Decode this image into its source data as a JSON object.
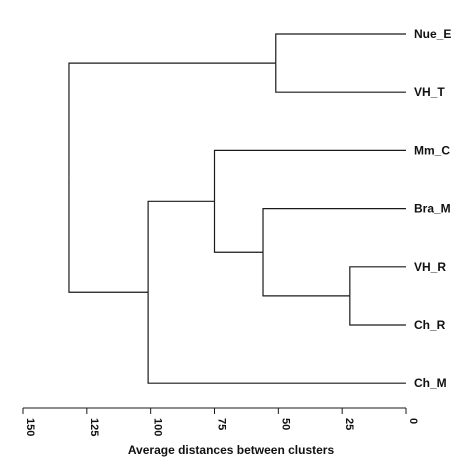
{
  "chart_data": {
    "type": "dendrogram",
    "orientation": "horizontal",
    "x_reversed": true,
    "xlabel": "Average distances between clusters",
    "xlim": [
      0,
      150
    ],
    "xticks": [
      150,
      125,
      100,
      75,
      50,
      25,
      0
    ],
    "leaves": [
      "Nue_E",
      "VH_T",
      "Mm_C",
      "Bra_M",
      "VH_R",
      "Ch_R",
      "Ch_M"
    ],
    "merges": [
      {
        "id": "m1",
        "children": [
          "VH_R",
          "Ch_R"
        ],
        "height": 22
      },
      {
        "id": "m2",
        "children": [
          "Bra_M",
          "m1"
        ],
        "height": 56
      },
      {
        "id": "m3",
        "children": [
          "Mm_C",
          "m2"
        ],
        "height": 75
      },
      {
        "id": "m4",
        "children": [
          "m3",
          "Ch_M"
        ],
        "height": 101
      },
      {
        "id": "m5",
        "children": [
          "Nue_E",
          "VH_T"
        ],
        "height": 51
      },
      {
        "id": "m6",
        "children": [
          "m5",
          "m4"
        ],
        "height": 132
      }
    ]
  }
}
